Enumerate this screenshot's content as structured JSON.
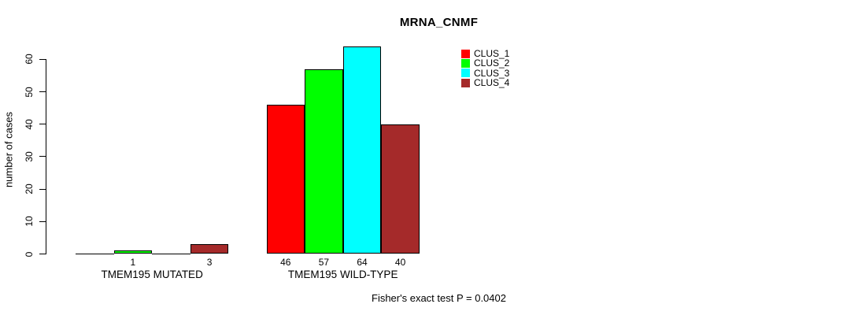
{
  "chart_data": {
    "type": "bar",
    "title": "MRNA_CNMF",
    "ylabel": "number of cases",
    "xlabel": "",
    "ylim": [
      0,
      60
    ],
    "yticks": [
      0,
      10,
      20,
      30,
      40,
      50,
      60
    ],
    "grid": false,
    "categories": [
      "TMEM195 MUTATED",
      "TMEM195 WILD-TYPE"
    ],
    "series": [
      {
        "name": "CLUS_1",
        "color": "#FF0000",
        "values": [
          0,
          46
        ]
      },
      {
        "name": "CLUS_2",
        "color": "#00FF00",
        "values": [
          1,
          57
        ]
      },
      {
        "name": "CLUS_3",
        "color": "#00FFFF",
        "values": [
          0,
          64
        ]
      },
      {
        "name": "CLUS_4",
        "color": "#A52A2A",
        "values": [
          3,
          40
        ]
      }
    ],
    "bar_value_labels": [
      [
        "",
        "1",
        "",
        "3"
      ],
      [
        "46",
        "57",
        "64",
        "40"
      ]
    ],
    "legend": {
      "position": "top-right",
      "entries": [
        "CLUS_1",
        "CLUS_2",
        "CLUS_3",
        "CLUS_4"
      ]
    },
    "annotation": "Fisher's exact test P = 0.0402",
    "background": "#FFFFFF",
    "text_color": "#000000",
    "axis_color": "#000000"
  }
}
